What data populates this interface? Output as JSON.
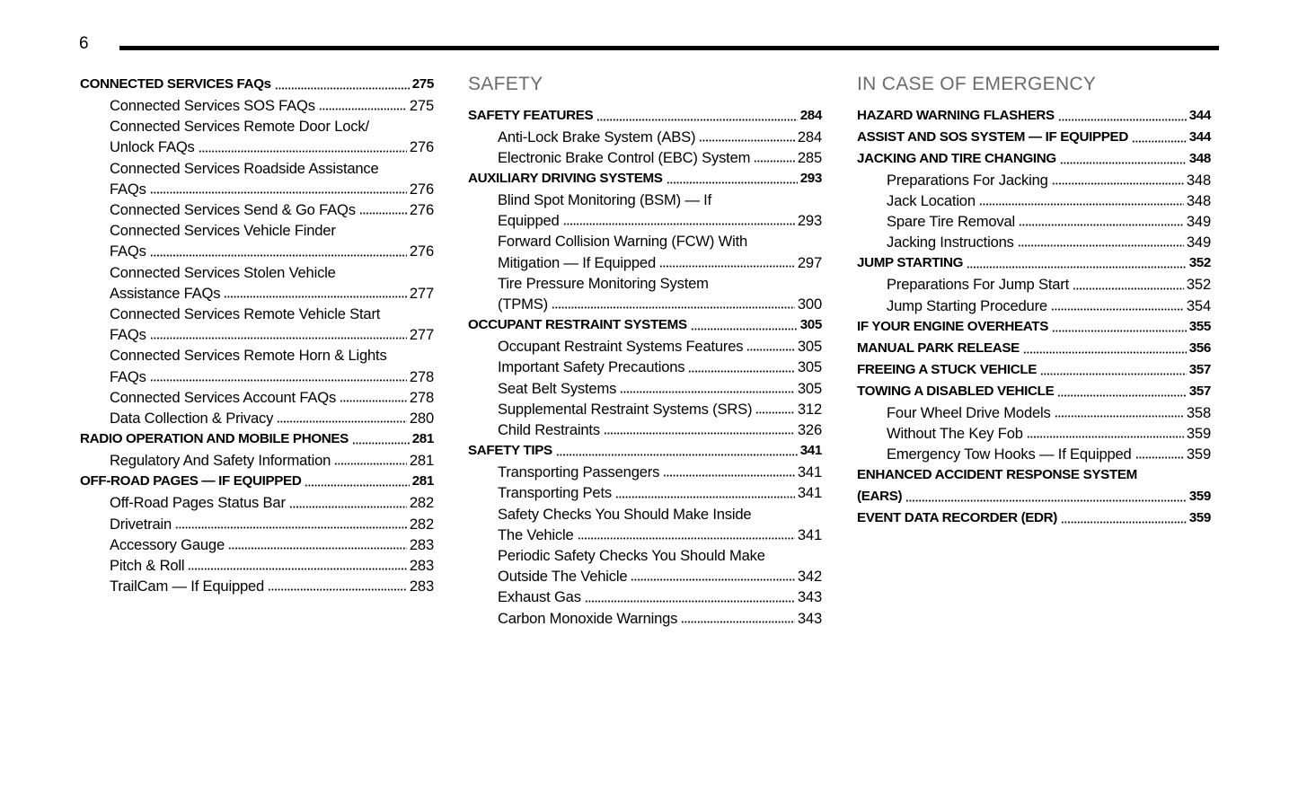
{
  "page_number": "6",
  "columns": [
    {
      "entries": [
        {
          "lines": [
            "CONNECTED SERVICES FAQs"
          ],
          "page": 275,
          "subentries": [
            {
              "lines": [
                "Connected Services SOS FAQs"
              ],
              "page": 275
            },
            {
              "lines": [
                "Connected Services Remote Door Lock/",
                "Unlock FAQs"
              ],
              "page": 276
            },
            {
              "lines": [
                "Connected Services Roadside Assistance",
                "FAQs"
              ],
              "page": 276
            },
            {
              "lines": [
                "Connected Services Send & Go FAQs"
              ],
              "page": 276
            },
            {
              "lines": [
                "Connected Services Vehicle Finder",
                "FAQs"
              ],
              "page": 276
            },
            {
              "lines": [
                "Connected Services Stolen Vehicle",
                "Assistance FAQs"
              ],
              "page": 277
            },
            {
              "lines": [
                "Connected Services Remote Vehicle Start",
                "FAQs"
              ],
              "page": 277
            },
            {
              "lines": [
                "Connected Services Remote Horn & Lights",
                "FAQs"
              ],
              "page": 278
            },
            {
              "lines": [
                "Connected Services Account FAQs"
              ],
              "page": 278
            },
            {
              "lines": [
                "Data Collection & Privacy"
              ],
              "page": 280
            }
          ]
        },
        {
          "lines": [
            "RADIO OPERATION AND MOBILE PHONES"
          ],
          "page": 281,
          "subentries": [
            {
              "lines": [
                "Regulatory And Safety Information"
              ],
              "page": 281
            }
          ]
        },
        {
          "lines": [
            "OFF-ROAD PAGES — IF EQUIPPED"
          ],
          "page": 281,
          "subentries": [
            {
              "lines": [
                "Off-Road Pages Status Bar"
              ],
              "page": 282
            },
            {
              "lines": [
                "Drivetrain"
              ],
              "page": 282
            },
            {
              "lines": [
                "Accessory Gauge"
              ],
              "page": 283
            },
            {
              "lines": [
                "Pitch & Roll"
              ],
              "page": 283
            },
            {
              "lines": [
                "TrailCam — If Equipped"
              ],
              "page": 283
            }
          ]
        }
      ]
    },
    {
      "heading": "SAFETY",
      "entries": [
        {
          "lines": [
            "SAFETY FEATURES"
          ],
          "page": 284,
          "subentries": [
            {
              "lines": [
                "Anti-Lock Brake System (ABS)"
              ],
              "page": 284
            },
            {
              "lines": [
                "Electronic Brake Control (EBC) System"
              ],
              "page": 285
            }
          ]
        },
        {
          "lines": [
            "AUXILIARY DRIVING SYSTEMS"
          ],
          "page": 293,
          "subentries": [
            {
              "lines": [
                "Blind Spot Monitoring (BSM) — If",
                "Equipped"
              ],
              "page": 293
            },
            {
              "lines": [
                "Forward Collision Warning (FCW) With",
                "Mitigation — If Equipped"
              ],
              "page": 297
            },
            {
              "lines": [
                "Tire Pressure Monitoring System",
                "(TPMS)"
              ],
              "page": 300
            }
          ]
        },
        {
          "lines": [
            "OCCUPANT RESTRAINT SYSTEMS"
          ],
          "page": 305,
          "subentries": [
            {
              "lines": [
                "Occupant Restraint Systems Features"
              ],
              "page": 305
            },
            {
              "lines": [
                "Important Safety Precautions"
              ],
              "page": 305
            },
            {
              "lines": [
                "Seat Belt Systems"
              ],
              "page": 305
            },
            {
              "lines": [
                "Supplemental Restraint Systems (SRS)"
              ],
              "page": 312
            },
            {
              "lines": [
                "Child Restraints"
              ],
              "page": 326
            }
          ]
        },
        {
          "lines": [
            "SAFETY TIPS"
          ],
          "page": 341,
          "subentries": [
            {
              "lines": [
                "Transporting Passengers"
              ],
              "page": 341
            },
            {
              "lines": [
                "Transporting Pets"
              ],
              "page": 341
            },
            {
              "lines": [
                "Safety Checks You Should Make Inside",
                "The Vehicle"
              ],
              "page": 341
            },
            {
              "lines": [
                "Periodic Safety Checks You Should Make",
                "Outside The Vehicle"
              ],
              "page": 342
            },
            {
              "lines": [
                "Exhaust Gas"
              ],
              "page": 343
            },
            {
              "lines": [
                "Carbon Monoxide Warnings"
              ],
              "page": 343
            }
          ]
        }
      ]
    },
    {
      "heading": "IN CASE OF EMERGENCY",
      "entries": [
        {
          "lines": [
            "HAZARD WARNING FLASHERS"
          ],
          "page": 344
        },
        {
          "lines": [
            "ASSIST AND SOS SYSTEM — IF EQUIPPED"
          ],
          "page": 344
        },
        {
          "lines": [
            "JACKING AND TIRE CHANGING"
          ],
          "page": 348,
          "subentries": [
            {
              "lines": [
                "Preparations For Jacking"
              ],
              "page": 348
            },
            {
              "lines": [
                "Jack Location"
              ],
              "page": 348
            },
            {
              "lines": [
                "Spare Tire Removal"
              ],
              "page": 349
            },
            {
              "lines": [
                "Jacking Instructions"
              ],
              "page": 349
            }
          ]
        },
        {
          "lines": [
            "JUMP STARTING"
          ],
          "page": 352,
          "subentries": [
            {
              "lines": [
                "Preparations For Jump Start"
              ],
              "page": 352
            },
            {
              "lines": [
                "Jump Starting Procedure"
              ],
              "page": 354
            }
          ]
        },
        {
          "lines": [
            "IF YOUR ENGINE OVERHEATS"
          ],
          "page": 355
        },
        {
          "lines": [
            "MANUAL PARK RELEASE"
          ],
          "page": 356
        },
        {
          "lines": [
            "FREEING A STUCK VEHICLE"
          ],
          "page": 357
        },
        {
          "lines": [
            "TOWING A DISABLED VEHICLE"
          ],
          "page": 357,
          "subentries": [
            {
              "lines": [
                "Four Wheel Drive Models"
              ],
              "page": 358
            },
            {
              "lines": [
                "Without The Key Fob"
              ],
              "page": 359
            },
            {
              "lines": [
                "Emergency Tow Hooks — If Equipped"
              ],
              "page": 359
            }
          ]
        },
        {
          "lines": [
            "ENHANCED ACCIDENT RESPONSE SYSTEM",
            "(EARS)"
          ],
          "page": 359
        },
        {
          "lines": [
            "EVENT DATA RECORDER (EDR)"
          ],
          "page": 359
        }
      ]
    }
  ]
}
